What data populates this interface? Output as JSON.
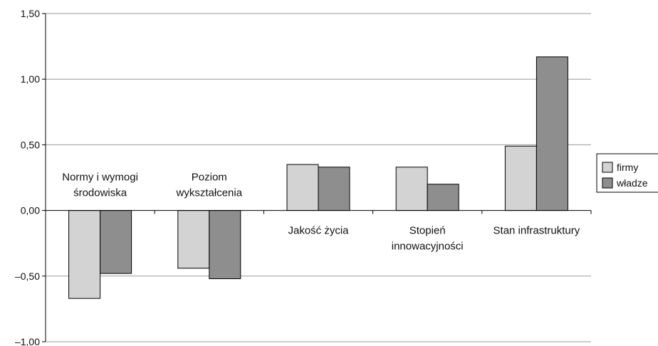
{
  "chart_data": {
    "type": "bar",
    "categories": [
      [
        "Normy i wymogi",
        "środowiska"
      ],
      [
        "Poziom",
        "wykształcenia"
      ],
      [
        "Jakość życia"
      ],
      [
        "Stopień",
        "innowacyjności"
      ],
      [
        "Stan infrastruktury"
      ]
    ],
    "series": [
      {
        "name": "firmy",
        "color": "#d3d3d3",
        "values": [
          -0.67,
          -0.44,
          0.35,
          0.33,
          0.49
        ]
      },
      {
        "name": "władze",
        "color": "#8e8e8e",
        "values": [
          -0.48,
          -0.52,
          0.33,
          0.2,
          1.17
        ]
      }
    ],
    "y_ticks": [
      "1,50",
      "1,00",
      "0,50",
      "0,00",
      "–0,50",
      "–1,00"
    ],
    "ylim": [
      -1.0,
      1.5
    ],
    "grid": true,
    "legend_position": "right"
  }
}
